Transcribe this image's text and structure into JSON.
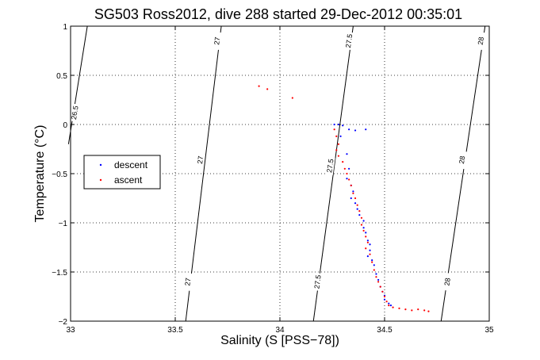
{
  "chart_data": {
    "type": "scatter",
    "title": "SG503 Ross2012, dive 288 started 29-Dec-2012 00:35:01",
    "xlabel": "Salinity (S [PSS−78])",
    "ylabel": "Temperature (°C)",
    "xlim": [
      33,
      35
    ],
    "ylim": [
      -2,
      1
    ],
    "xticks": [
      "33",
      "33.5",
      "34",
      "34.5",
      "35"
    ],
    "yticks": [
      "−2",
      "−1.5",
      "−1",
      "−0.5",
      "0",
      "0.5",
      "1"
    ],
    "grid": true,
    "legend_position": "left",
    "series": [
      {
        "name": "descent",
        "color": "#0000ff",
        "points": [
          [
            34.26,
            0.0
          ],
          [
            34.28,
            0.0
          ],
          [
            34.3,
            -0.01
          ],
          [
            34.33,
            -0.05
          ],
          [
            34.36,
            -0.06
          ],
          [
            34.41,
            -0.05
          ],
          [
            34.29,
            -0.12
          ],
          [
            34.32,
            -0.3
          ],
          [
            34.33,
            -0.45
          ],
          [
            34.32,
            -0.55
          ],
          [
            34.34,
            -0.62
          ],
          [
            34.35,
            -0.68
          ],
          [
            34.34,
            -0.75
          ],
          [
            34.36,
            -0.8
          ],
          [
            34.37,
            -0.86
          ],
          [
            34.38,
            -0.92
          ],
          [
            34.4,
            -0.98
          ],
          [
            34.4,
            -1.05
          ],
          [
            34.41,
            -1.1
          ],
          [
            34.42,
            -1.18
          ],
          [
            34.43,
            -1.22
          ],
          [
            34.43,
            -1.28
          ],
          [
            34.42,
            -1.34
          ],
          [
            34.44,
            -1.38
          ],
          [
            34.45,
            -1.43
          ],
          [
            34.46,
            -1.52
          ],
          [
            34.47,
            -1.58
          ],
          [
            34.48,
            -1.65
          ],
          [
            34.49,
            -1.7
          ],
          [
            34.5,
            -1.74
          ],
          [
            34.5,
            -1.78
          ],
          [
            34.52,
            -1.82
          ],
          [
            34.53,
            -1.84
          ]
        ]
      },
      {
        "name": "ascent",
        "color": "#ff0000",
        "points": [
          [
            33.9,
            0.39
          ],
          [
            33.94,
            0.36
          ],
          [
            34.06,
            0.27
          ],
          [
            34.26,
            -0.05
          ],
          [
            34.27,
            -0.12
          ],
          [
            34.28,
            -0.2
          ],
          [
            34.27,
            -0.26
          ],
          [
            34.28,
            -0.32
          ],
          [
            34.3,
            -0.38
          ],
          [
            34.31,
            -0.45
          ],
          [
            34.32,
            -0.5
          ],
          [
            34.33,
            -0.56
          ],
          [
            34.34,
            -0.62
          ],
          [
            34.35,
            -0.7
          ],
          [
            34.36,
            -0.75
          ],
          [
            34.37,
            -0.82
          ],
          [
            34.38,
            -0.88
          ],
          [
            34.39,
            -0.95
          ],
          [
            34.39,
            -1.02
          ],
          [
            34.4,
            -1.08
          ],
          [
            34.41,
            -1.14
          ],
          [
            34.42,
            -1.2
          ],
          [
            34.41,
            -1.26
          ],
          [
            34.43,
            -1.32
          ],
          [
            34.44,
            -1.4
          ],
          [
            34.45,
            -1.48
          ],
          [
            34.46,
            -1.55
          ],
          [
            34.47,
            -1.6
          ],
          [
            34.48,
            -1.65
          ],
          [
            34.49,
            -1.7
          ],
          [
            34.5,
            -1.75
          ],
          [
            34.51,
            -1.8
          ],
          [
            34.52,
            -1.84
          ],
          [
            34.54,
            -1.86
          ],
          [
            34.57,
            -1.87
          ],
          [
            34.6,
            -1.88
          ],
          [
            34.63,
            -1.89
          ],
          [
            34.66,
            -1.88
          ],
          [
            34.69,
            -1.89
          ],
          [
            34.71,
            -1.9
          ]
        ]
      }
    ],
    "contours": [
      {
        "label": "26.5",
        "points": [
          [
            33.08,
            1.0
          ],
          [
            32.99,
            -0.2
          ]
        ],
        "label_at": [
          33.02,
          0.12
        ]
      },
      {
        "label": "27",
        "points": [
          [
            33.72,
            1.0
          ],
          [
            33.55,
            -2.0
          ]
        ],
        "label_at_list": [
          [
            33.7,
            0.85
          ],
          [
            33.62,
            -0.36
          ],
          [
            33.56,
            -1.6
          ]
        ]
      },
      {
        "label": "27.5",
        "points": [
          [
            34.35,
            1.0
          ],
          [
            34.16,
            -2.0
          ]
        ],
        "label_at_list": [
          [
            34.33,
            0.85
          ],
          [
            34.24,
            -0.42
          ],
          [
            34.18,
            -1.6
          ]
        ]
      },
      {
        "label": "28",
        "points": [
          [
            34.98,
            1.0
          ],
          [
            34.77,
            -2.0
          ]
        ],
        "label_at_list": [
          [
            34.96,
            0.85
          ],
          [
            34.87,
            -0.36
          ],
          [
            34.8,
            -1.6
          ]
        ]
      }
    ]
  }
}
